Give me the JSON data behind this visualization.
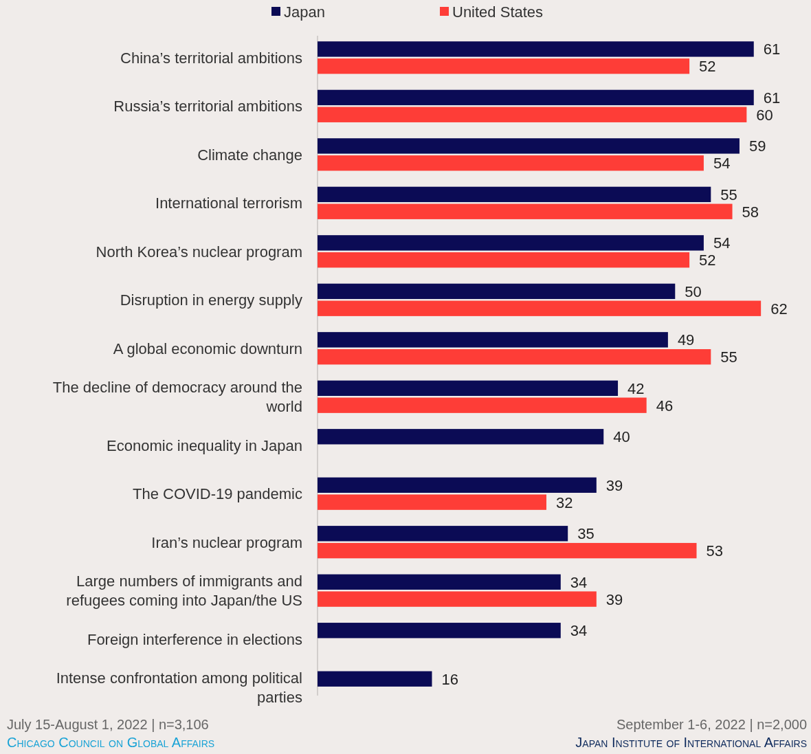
{
  "chart_data": {
    "type": "bar",
    "orientation": "horizontal",
    "data_labels": true,
    "legend": "top",
    "xlim": [
      0,
      69
    ],
    "categories": [
      "China’s territorial ambitions",
      "Russia’s territorial ambitions",
      "Climate change",
      "International terrorism",
      "North Korea’s nuclear program",
      "Disruption in energy supply",
      "A global economic downturn",
      "The decline of democracy around the world",
      "Economic inequality in Japan",
      "The COVID-19 pandemic",
      "Iran’s nuclear program",
      "Large numbers of immigrants and refugees coming into Japan/the US",
      "Foreign interference in elections",
      "Intense confrontation among political parties"
    ],
    "series": [
      {
        "name": "Japan",
        "color": "#0b0b55",
        "values": [
          61,
          61,
          59,
          55,
          54,
          50,
          49,
          42,
          40,
          39,
          35,
          34,
          34,
          16
        ]
      },
      {
        "name": "United States",
        "color": "#fe3d37",
        "values": [
          52,
          60,
          54,
          58,
          52,
          62,
          55,
          46,
          null,
          32,
          53,
          39,
          null,
          null
        ]
      }
    ],
    "annotations": [
      "July 15-August 1, 2022 | n=3,106",
      "Chicago Council on Global Affairs",
      "September 1-6, 2022 | n=2,000",
      "Japan Institute of International Affairs"
    ]
  }
}
